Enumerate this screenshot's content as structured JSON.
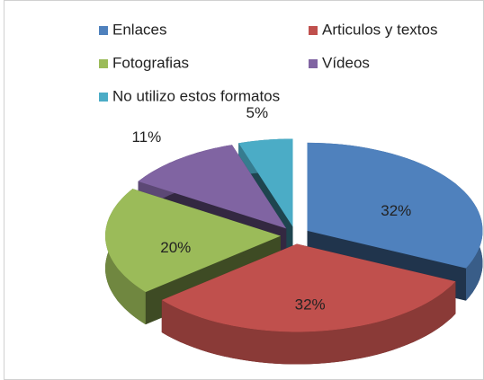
{
  "chart_data": {
    "type": "pie",
    "categories": [
      "Enlaces",
      "Articulos y textos",
      "Fotografias",
      "Vídeos",
      "No utilizo estos formatos"
    ],
    "values": [
      32,
      32,
      20,
      11,
      5
    ],
    "value_labels": [
      "32%",
      "32%",
      "20%",
      "11%",
      "5%"
    ],
    "colors": [
      "#4f81bd",
      "#c0504d",
      "#9bbb59",
      "#8064a2",
      "#4bacc6"
    ],
    "legend": "top"
  }
}
